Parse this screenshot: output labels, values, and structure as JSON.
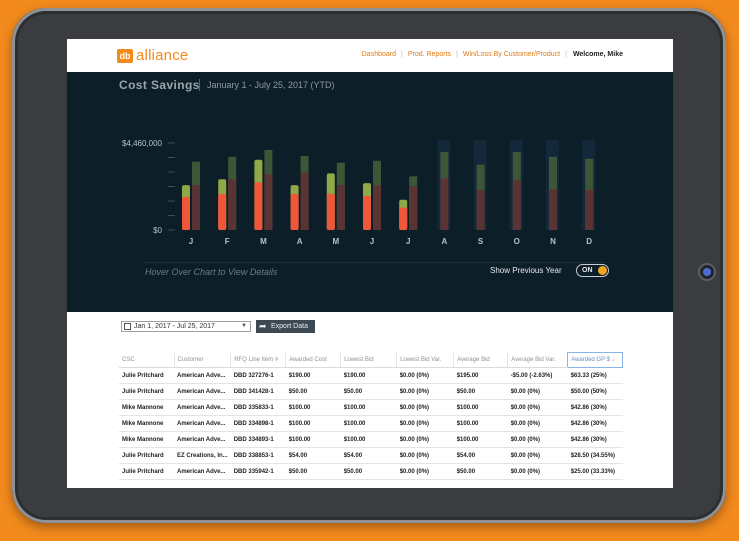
{
  "brand": {
    "mark": "db",
    "name": "alliance"
  },
  "nav": {
    "items": [
      {
        "label": "Dashboard"
      },
      {
        "label": "Prod. Reports"
      },
      {
        "label": "Win/Loss By Customer/Product"
      }
    ],
    "welcome": "Welcome, Mike"
  },
  "dashboard": {
    "title": "Cost Savings",
    "range": "January 1 - July 25, 2017 (YTD)",
    "hint": "Hover Over Chart to View Details",
    "show_previous_label": "Show Previous Year",
    "toggle_label": "ON"
  },
  "colors": {
    "bg": "#0c1e28",
    "current_red": "#f0563a",
    "current_olive": "#8fa848",
    "prev_dark": "#5a3434",
    "prev_green": "#3e5537",
    "future_col": "#13293a",
    "accent": "#f28a1d"
  },
  "chart_data": {
    "type": "bar",
    "ytick_labels": [
      "$4,460,000",
      "$0"
    ],
    "ylim": [
      0,
      4460000
    ],
    "categories": [
      "J",
      "F",
      "M",
      "A",
      "M",
      "J",
      "J",
      "A",
      "S",
      "O",
      "N",
      "D"
    ],
    "series": [
      {
        "values": [
          1700000,
          1850000,
          2450000,
          1850000,
          1850000,
          1750000,
          1150000,
          null,
          null,
          null,
          null,
          null
        ]
      },
      {
        "values": [
          2300000,
          2600000,
          3600000,
          2300000,
          2900000,
          2400000,
          1550000,
          null,
          null,
          null,
          null,
          null
        ]
      },
      {
        "values": [
          2300000,
          2600000,
          2850000,
          2950000,
          2300000,
          2300000,
          2250000,
          2650000,
          2050000,
          2550000,
          2100000,
          2050000
        ]
      },
      {
        "values": [
          3500000,
          3750000,
          4100000,
          3800000,
          3450000,
          3550000,
          2750000,
          4000000,
          3350000,
          4000000,
          3750000,
          3650000
        ]
      }
    ],
    "legend": "none"
  },
  "controls": {
    "date_select_value": "Jan 1, 2017 - Jul 25, 2017",
    "export_label": "Export Data"
  },
  "table": {
    "columns": [
      "CSC",
      "Customer",
      "RFQ Line Item #",
      "Awarded Cost",
      "Lowest Bid",
      "Lowest Bid Var.",
      "Average Bid",
      "Average Bid Var.",
      "Awarded GP $ ↓"
    ],
    "rows": [
      [
        "Julie Pritchard",
        "American Adve...",
        "DBD 327276-1",
        "$190.00",
        "$190.00",
        "$0.00 (0%)",
        "$195.00",
        "-$5.00 (-2.63%)",
        "$63.33 (25%)"
      ],
      [
        "Julie Pritchard",
        "American Adve...",
        "DBD 341428-1",
        "$50.00",
        "$50.00",
        "$0.00 (0%)",
        "$50.00",
        "$0.00 (0%)",
        "$50.00 (50%)"
      ],
      [
        "Mike Mannone",
        "American Adve...",
        "DBD 335833-1",
        "$100.00",
        "$100.00",
        "$0.00 (0%)",
        "$100.00",
        "$0.00 (0%)",
        "$42.86 (30%)"
      ],
      [
        "Mike Mannone",
        "American Adve...",
        "DBD 334898-1",
        "$100.00",
        "$100.00",
        "$0.00 (0%)",
        "$100.00",
        "$0.00 (0%)",
        "$42.86 (30%)"
      ],
      [
        "Mike Mannone",
        "American Adve...",
        "DBD 334893-1",
        "$100.00",
        "$100.00",
        "$0.00 (0%)",
        "$100.00",
        "$0.00 (0%)",
        "$42.86 (30%)"
      ],
      [
        "Julie Pritchard",
        "EZ Creations, In...",
        "DBD 338853-1",
        "$54.00",
        "$54.00",
        "$0.00 (0%)",
        "$54.00",
        "$0.00 (0%)",
        "$28.50 (34.55%)"
      ],
      [
        "Julie Pritchard",
        "American Adve...",
        "DBD 335942-1",
        "$50.00",
        "$50.00",
        "$0.00 (0%)",
        "$50.00",
        "$0.00 (0%)",
        "$25.00 (33.33%)"
      ]
    ]
  }
}
